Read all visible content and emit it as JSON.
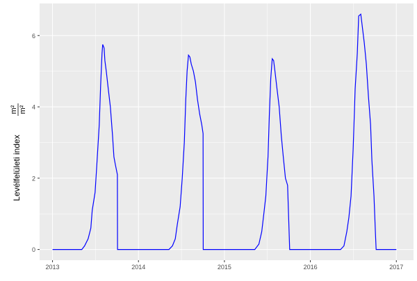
{
  "chart_data": {
    "type": "line",
    "title": "",
    "xlabel": "",
    "ylabel": "Levélfelületi index",
    "ylabel_unit_num": "m²",
    "ylabel_unit_den": "m²",
    "xlim": [
      2012.85,
      2017.2
    ],
    "ylim": [
      -0.3,
      6.9
    ],
    "grid": true,
    "line_color": "#0000ff",
    "x_ticks": [
      2013,
      2014,
      2015,
      2016,
      2017
    ],
    "x_tick_labels": [
      "2013",
      "2014",
      "2015",
      "2016",
      "2017"
    ],
    "y_ticks": [
      0,
      2,
      4,
      6
    ],
    "y_tick_labels": [
      "0",
      "2",
      "4",
      "6"
    ],
    "series": [
      {
        "x": [
          2013.0,
          2013.341,
          2013.373,
          2013.414,
          2013.446,
          2013.462,
          2013.495,
          2013.519,
          2013.544,
          2013.56,
          2013.576,
          2013.584,
          2013.6,
          2013.609,
          2013.625,
          2013.649,
          2013.673,
          2013.698,
          2013.714,
          2013.73,
          2013.755,
          2013.756,
          2014.355,
          2014.395,
          2014.428,
          2014.452,
          2014.485,
          2014.509,
          2014.533,
          2014.55,
          2014.566,
          2014.582,
          2014.598,
          2014.614,
          2014.639,
          2014.663,
          2014.687,
          2014.712,
          2014.736,
          2014.752,
          2014.753,
          2015.353,
          2015.401,
          2015.434,
          2015.458,
          2015.482,
          2015.507,
          2015.523,
          2015.539,
          2015.556,
          2015.572,
          2015.588,
          2015.612,
          2015.637,
          2015.661,
          2015.685,
          2015.71,
          2015.735,
          2015.759,
          2016.351,
          2016.391,
          2016.424,
          2016.448,
          2016.473,
          2016.497,
          2016.521,
          2016.546,
          2016.562,
          2016.586,
          2016.602,
          2016.627,
          2016.651,
          2016.675,
          2016.7,
          2016.716,
          2016.74,
          2016.756,
          2016.765,
          2017.0
        ],
        "y": [
          0,
          0,
          0.1,
          0.3,
          0.6,
          1.1,
          1.6,
          2.5,
          3.5,
          4.6,
          5.5,
          5.75,
          5.65,
          5.3,
          5.0,
          4.5,
          4.0,
          3.2,
          2.6,
          2.4,
          2.1,
          0,
          0,
          0.1,
          0.3,
          0.7,
          1.2,
          2.0,
          3.0,
          4.2,
          5.0,
          5.45,
          5.4,
          5.2,
          5.0,
          4.7,
          4.2,
          3.8,
          3.5,
          3.25,
          0,
          0,
          0.15,
          0.5,
          1.0,
          1.5,
          2.6,
          3.8,
          4.8,
          5.35,
          5.3,
          5.0,
          4.5,
          4.0,
          3.2,
          2.6,
          2.0,
          1.8,
          0,
          0,
          0.1,
          0.5,
          0.9,
          1.5,
          2.8,
          4.5,
          5.5,
          6.55,
          6.6,
          6.3,
          5.8,
          5.2,
          4.3,
          3.5,
          2.5,
          1.5,
          0.5,
          0,
          0
        ]
      }
    ]
  }
}
